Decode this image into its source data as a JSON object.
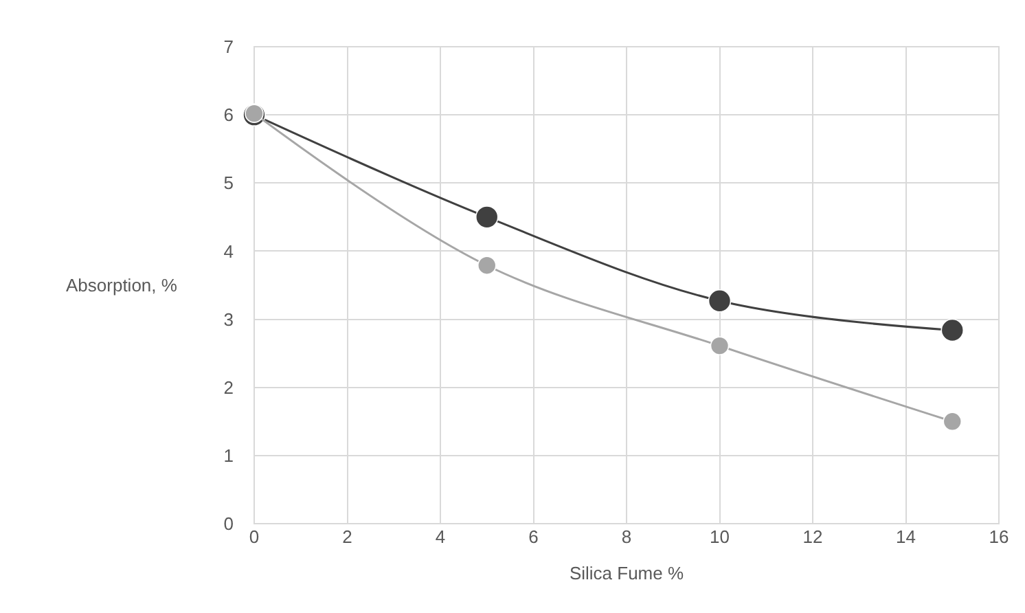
{
  "chart_data": {
    "type": "line",
    "xlabel": "Silica Fume %",
    "ylabel": "Absorption, %",
    "x": [
      0,
      5,
      10,
      15
    ],
    "series": [
      {
        "color": "#404040",
        "values": [
          6.0,
          4.5,
          3.27,
          2.84
        ]
      },
      {
        "color": "#a6a6a6",
        "values": [
          6.02,
          3.79,
          2.61,
          1.5
        ]
      }
    ],
    "xlim": [
      0,
      16
    ],
    "xticks": [
      0,
      2,
      4,
      6,
      8,
      10,
      12,
      14,
      16
    ],
    "ylim": [
      0,
      7
    ],
    "yticks": [
      0,
      1,
      2,
      3,
      4,
      5,
      6,
      7
    ],
    "grid": true,
    "marker": "circle",
    "line_style": "solid"
  }
}
